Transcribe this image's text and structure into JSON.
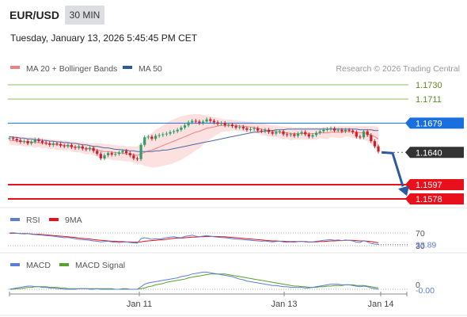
{
  "header": {
    "symbol": "EUR/USD",
    "timeframe": "30 MIN",
    "datetime": "Tuesday, January 13, 2026 5:45:45 PM CET"
  },
  "colors": {
    "ma20": "#f08080",
    "bollinger_fill": "#fde0e0",
    "ma50": "#4a6aa8",
    "price_up": "#2e9e6a",
    "price_down": "#c8202c",
    "support": "#e8101a",
    "resistance": "#8cc05c",
    "pivot": "#1a6fe0",
    "current": "#333333",
    "arrow": "#2b5aa0",
    "rsi": "#5b7fd6",
    "rsi_ma": "#e8101a",
    "macd": "#5b7fd6",
    "macd_signal": "#5aa02c"
  },
  "chart_data": [
    {
      "type": "line",
      "panel": "price",
      "legend": [
        {
          "label": "MA 20 + Bollinger Bands",
          "color": "#f08080"
        },
        {
          "label": "MA 50",
          "color": "#2b5aa0"
        }
      ],
      "credit": "Research © 2026 Trading Central",
      "x_ticks": [
        "Jan 11",
        "Jan 13",
        "Jan 14"
      ],
      "ylim": [
        1.157,
        1.174
      ],
      "levels": [
        {
          "value": 1.173,
          "label": "1.1730",
          "kind": "resistance"
        },
        {
          "value": 1.1711,
          "label": "1.1711",
          "kind": "resistance"
        },
        {
          "value": 1.1679,
          "label": "1.1679",
          "kind": "pivot"
        },
        {
          "value": 1.164,
          "label": "1.1640",
          "kind": "current"
        },
        {
          "value": 1.1597,
          "label": "1.1597",
          "kind": "support"
        },
        {
          "value": 1.1578,
          "label": "1.1578",
          "kind": "support"
        }
      ],
      "forecast_arrow": {
        "from": 1.164,
        "to": 1.1582
      },
      "price_series": [
        1.1659,
        1.1658,
        1.1656,
        1.1654,
        1.1655,
        1.1652,
        1.1654,
        1.1657,
        1.1655,
        1.1653,
        1.1652,
        1.165,
        1.1652,
        1.1651,
        1.1649,
        1.1648,
        1.165,
        1.1647,
        1.1646,
        1.1648,
        1.1645,
        1.1644,
        1.1646,
        1.1642,
        1.1638,
        1.1632,
        1.1636,
        1.1639,
        1.1637,
        1.1638,
        1.164,
        1.1642,
        1.1639,
        1.1636,
        1.1632,
        1.1631,
        1.165,
        1.166,
        1.1661,
        1.1658,
        1.1662,
        1.1663,
        1.1664,
        1.1665,
        1.1667,
        1.1668,
        1.167,
        1.1673,
        1.1676,
        1.168,
        1.1682,
        1.1681,
        1.1679,
        1.1681,
        1.1684,
        1.1682,
        1.168,
        1.1678,
        1.1679,
        1.1676,
        1.1677,
        1.1675,
        1.1673,
        1.1674,
        1.1672,
        1.167,
        1.1671,
        1.1672,
        1.1669,
        1.1668,
        1.167,
        1.1667,
        1.1665,
        1.1667,
        1.1668,
        1.1664,
        1.1663,
        1.1664,
        1.1662,
        1.1665,
        1.1667,
        1.1664,
        1.1661,
        1.1663,
        1.1666,
        1.1668,
        1.167,
        1.1671,
        1.1672,
        1.1669,
        1.167,
        1.1668,
        1.167,
        1.1669,
        1.1667,
        1.1661,
        1.166,
        1.1668,
        1.1663,
        1.1655,
        1.1648,
        1.1641
      ],
      "ma20_series": [
        1.1656,
        1.1656,
        1.1655,
        1.1655,
        1.1654,
        1.1654,
        1.1654,
        1.1653,
        1.1653,
        1.1652,
        1.1652,
        1.1651,
        1.1651,
        1.165,
        1.165,
        1.1649,
        1.1649,
        1.1648,
        1.1647,
        1.1647,
        1.1646,
        1.1645,
        1.1645,
        1.1644,
        1.1643,
        1.1642,
        1.1641,
        1.1641,
        1.164,
        1.164,
        1.1639,
        1.1639,
        1.1638,
        1.1638,
        1.1637,
        1.1636,
        1.1638,
        1.164,
        1.1642,
        1.1643,
        1.1645,
        1.1647,
        1.1649,
        1.1651,
        1.1653,
        1.1655,
        1.1657,
        1.1659,
        1.1661,
        1.1663,
        1.1665,
        1.1667,
        1.1668,
        1.167,
        1.1672,
        1.1673,
        1.1674,
        1.1675,
        1.1676,
        1.1676,
        1.1676,
        1.1676,
        1.1676,
        1.1675,
        1.1675,
        1.1674,
        1.1674,
        1.1673,
        1.1672,
        1.1671,
        1.167,
        1.1669,
        1.1668,
        1.1668,
        1.1667,
        1.1666,
        1.1666,
        1.1665,
        1.1665,
        1.1665,
        1.1665,
        1.1665,
        1.1665,
        1.1665,
        1.1665,
        1.1666,
        1.1666,
        1.1666,
        1.1667,
        1.1667,
        1.1667,
        1.1667,
        1.1668,
        1.1668,
        1.1667,
        1.1667,
        1.1666,
        1.1666,
        1.1665,
        1.1663,
        1.1661,
        1.1658
      ],
      "bb_upper": [
        1.1662,
        1.1662,
        1.1661,
        1.1661,
        1.166,
        1.166,
        1.166,
        1.166,
        1.1659,
        1.1659,
        1.1658,
        1.1658,
        1.1657,
        1.1657,
        1.1656,
        1.1656,
        1.1655,
        1.1655,
        1.1654,
        1.1654,
        1.1653,
        1.1653,
        1.1652,
        1.1652,
        1.1652,
        1.1652,
        1.1651,
        1.1651,
        1.165,
        1.165,
        1.1649,
        1.1649,
        1.1648,
        1.1648,
        1.1648,
        1.1648,
        1.1652,
        1.1658,
        1.1663,
        1.1666,
        1.167,
        1.1673,
        1.1676,
        1.1679,
        1.1682,
        1.1684,
        1.1686,
        1.1688,
        1.1689,
        1.169,
        1.1691,
        1.1691,
        1.1691,
        1.169,
        1.1689,
        1.1688,
        1.1687,
        1.1686,
        1.1685,
        1.1684,
        1.1684,
        1.1683,
        1.1683,
        1.1682,
        1.1682,
        1.1681,
        1.1681,
        1.168,
        1.1679,
        1.1679,
        1.1678,
        1.1677,
        1.1676,
        1.1676,
        1.1675,
        1.1675,
        1.1674,
        1.1674,
        1.1673,
        1.1673,
        1.1673,
        1.1673,
        1.1673,
        1.1673,
        1.1673,
        1.1673,
        1.1674,
        1.1674,
        1.1674,
        1.1674,
        1.1675,
        1.1675,
        1.1675,
        1.1675,
        1.1675,
        1.1675,
        1.1675,
        1.1675,
        1.1675,
        1.1675,
        1.1675,
        1.1674
      ],
      "bb_lower": [
        1.165,
        1.165,
        1.1649,
        1.1649,
        1.1648,
        1.1648,
        1.1648,
        1.1646,
        1.1647,
        1.1645,
        1.1646,
        1.1644,
        1.1645,
        1.1643,
        1.1644,
        1.1642,
        1.1643,
        1.1641,
        1.164,
        1.164,
        1.1639,
        1.1637,
        1.1638,
        1.1636,
        1.1634,
        1.1632,
        1.1631,
        1.1631,
        1.163,
        1.163,
        1.1629,
        1.1629,
        1.1628,
        1.1628,
        1.1626,
        1.1624,
        1.1624,
        1.1622,
        1.1621,
        1.162,
        1.162,
        1.1621,
        1.1622,
        1.1623,
        1.1624,
        1.1626,
        1.1628,
        1.163,
        1.1633,
        1.1636,
        1.1639,
        1.1643,
        1.1645,
        1.165,
        1.1655,
        1.1658,
        1.1661,
        1.1664,
        1.1667,
        1.1668,
        1.1668,
        1.1669,
        1.1669,
        1.1668,
        1.1668,
        1.1667,
        1.1667,
        1.1666,
        1.1665,
        1.1663,
        1.1662,
        1.1661,
        1.166,
        1.166,
        1.1659,
        1.1657,
        1.1658,
        1.1656,
        1.1657,
        1.1657,
        1.1657,
        1.1657,
        1.1657,
        1.1657,
        1.1657,
        1.1659,
        1.1658,
        1.1658,
        1.166,
        1.166,
        1.1659,
        1.1659,
        1.1661,
        1.1661,
        1.1659,
        1.1659,
        1.1657,
        1.1657,
        1.1655,
        1.1651,
        1.1647,
        1.1642
      ],
      "ma50_series": [
        1.1661,
        1.166,
        1.166,
        1.1659,
        1.1659,
        1.1658,
        1.1658,
        1.1657,
        1.1657,
        1.1656,
        1.1656,
        1.1655,
        1.1655,
        1.1654,
        1.1654,
        1.1653,
        1.1653,
        1.1652,
        1.1652,
        1.1651,
        1.165,
        1.165,
        1.1649,
        1.1648,
        1.1648,
        1.1647,
        1.1646,
        1.1646,
        1.1645,
        1.1644,
        1.1644,
        1.1643,
        1.1643,
        1.1642,
        1.1642,
        1.1641,
        1.1641,
        1.1641,
        1.1641,
        1.1641,
        1.1642,
        1.1642,
        1.1643,
        1.1643,
        1.1644,
        1.1645,
        1.1646,
        1.1647,
        1.1648,
        1.1649,
        1.165,
        1.1651,
        1.1652,
        1.1653,
        1.1654,
        1.1655,
        1.1656,
        1.1657,
        1.1658,
        1.1659,
        1.166,
        1.1661,
        1.1662,
        1.1663,
        1.1664,
        1.1665,
        1.1666,
        1.1667,
        1.1667,
        1.1668,
        1.1668,
        1.1669,
        1.1669,
        1.167,
        1.167,
        1.167,
        1.1671,
        1.1671,
        1.1671,
        1.1671,
        1.1671,
        1.1671,
        1.1671,
        1.1671,
        1.1671,
        1.1671,
        1.1671,
        1.1671,
        1.1671,
        1.1671,
        1.1671,
        1.1671,
        1.1671,
        1.1671,
        1.1671,
        1.1671,
        1.167,
        1.167,
        1.167,
        1.167,
        1.1669,
        1.1669
      ]
    },
    {
      "type": "line",
      "panel": "rsi",
      "legend": [
        {
          "label": "RSI",
          "color": "#5b7fd6"
        },
        {
          "label": "9MA",
          "color": "#e8101a"
        }
      ],
      "levels": [
        {
          "value": 70,
          "label": "70"
        },
        {
          "value": 30,
          "label": "30"
        }
      ],
      "current_value": {
        "value": 33.89,
        "label": "33.89"
      },
      "ylim": [
        20,
        80
      ],
      "rsi_series": [
        70,
        71,
        69,
        68,
        67,
        68,
        66,
        65,
        64,
        63,
        62,
        61,
        60,
        58,
        57,
        55,
        56,
        54,
        52,
        50,
        49,
        48,
        47,
        45,
        44,
        42,
        43,
        44,
        42,
        41,
        40,
        41,
        42,
        40,
        39,
        38,
        52,
        55,
        53,
        50,
        52,
        51,
        53,
        55,
        57,
        58,
        56,
        55,
        59,
        61,
        63,
        60,
        58,
        60,
        62,
        60,
        58,
        57,
        56,
        55,
        54,
        52,
        51,
        50,
        49,
        48,
        47,
        46,
        45,
        44,
        45,
        43,
        42,
        43,
        44,
        42,
        41,
        42,
        41,
        43,
        44,
        42,
        41,
        42,
        44,
        45,
        47,
        48,
        49,
        47,
        48,
        46,
        48,
        47,
        45,
        41,
        40,
        46,
        42,
        37,
        35,
        34
      ],
      "ma_series": [
        69,
        69,
        69,
        68,
        68,
        68,
        67,
        66,
        66,
        65,
        64,
        63,
        62,
        61,
        60,
        59,
        58,
        57,
        56,
        54,
        53,
        52,
        51,
        49,
        48,
        47,
        46,
        45,
        44,
        44,
        43,
        43,
        42,
        42,
        41,
        41,
        42,
        44,
        45,
        46,
        47,
        48,
        49,
        50,
        52,
        53,
        54,
        54,
        55,
        56,
        57,
        57,
        58,
        58,
        59,
        59,
        59,
        59,
        58,
        58,
        57,
        56,
        55,
        54,
        53,
        52,
        51,
        50,
        49,
        48,
        47,
        46,
        45,
        45,
        44,
        44,
        43,
        43,
        43,
        43,
        43,
        43,
        42,
        42,
        42,
        43,
        43,
        44,
        45,
        45,
        46,
        46,
        47,
        47,
        47,
        46,
        45,
        45,
        44,
        43,
        41,
        39
      ]
    },
    {
      "type": "line",
      "panel": "macd",
      "legend": [
        {
          "label": "MACD",
          "color": "#5b7fd6"
        },
        {
          "label": "MACD Signal",
          "color": "#5aa02c"
        }
      ],
      "levels": [
        {
          "value": 0,
          "label": "0"
        }
      ],
      "current_value": {
        "value": -0.0,
        "label": "-0.00"
      },
      "ylim": [
        -0.001,
        0.0035
      ],
      "macd_series": [
        0.0,
        0.0001,
        0.0002,
        0.0003,
        0.0004,
        0.0005,
        0.0005,
        0.0004,
        0.0004,
        0.0003,
        0.0003,
        0.0002,
        0.0002,
        0.0001,
        0.0001,
        0.0,
        0.0,
        0.0,
        0.0,
        0.0001,
        0.0001,
        0.0001,
        0.0,
        0.0,
        0.0001,
        0.0,
        0.0,
        0.0,
        0.0,
        0.0,
        0.0,
        0.0001,
        0.0001,
        0.0,
        0.0,
        0.0,
        0.0004,
        0.0008,
        0.001,
        0.0011,
        0.0012,
        0.0013,
        0.0014,
        0.0015,
        0.0016,
        0.0017,
        0.0018,
        0.002,
        0.0021,
        0.0022,
        0.0024,
        0.0025,
        0.0026,
        0.0027,
        0.0027,
        0.0026,
        0.0025,
        0.0024,
        0.0023,
        0.0022,
        0.0021,
        0.002,
        0.0018,
        0.0016,
        0.0015,
        0.0013,
        0.0012,
        0.0011,
        0.001,
        0.0009,
        0.0008,
        0.0007,
        0.0006,
        0.0006,
        0.0005,
        0.0004,
        0.0004,
        0.0003,
        0.0003,
        0.0003,
        0.0003,
        0.0002,
        0.0002,
        0.0003,
        0.0004,
        0.0005,
        0.0006,
        0.0007,
        0.0008,
        0.0008,
        0.0008,
        0.0007,
        0.0007,
        0.0007,
        0.0006,
        0.0005,
        0.0004,
        0.0005,
        0.0004,
        0.0002,
        0.0001,
        0.0
      ],
      "signal_series": [
        0.0,
        0.0,
        0.0001,
        0.0001,
        0.0002,
        0.0003,
        0.0003,
        0.0004,
        0.0004,
        0.0004,
        0.0004,
        0.0003,
        0.0003,
        0.0003,
        0.0002,
        0.0002,
        0.0001,
        0.0001,
        0.0001,
        0.0001,
        0.0001,
        0.0001,
        0.0001,
        0.0001,
        0.0001,
        0.0001,
        0.0001,
        0.0001,
        0.0001,
        0.0,
        0.0,
        0.0,
        0.0,
        0.0,
        0.0,
        0.0,
        0.0001,
        0.0002,
        0.0004,
        0.0005,
        0.0007,
        0.0008,
        0.0009,
        0.0011,
        0.0012,
        0.0013,
        0.0014,
        0.0015,
        0.0016,
        0.0018,
        0.0019,
        0.002,
        0.0021,
        0.0022,
        0.0023,
        0.0024,
        0.0024,
        0.0024,
        0.0024,
        0.0024,
        0.0023,
        0.0022,
        0.0021,
        0.002,
        0.0019,
        0.0018,
        0.0017,
        0.0016,
        0.0015,
        0.0014,
        0.0013,
        0.0012,
        0.0011,
        0.001,
        0.0009,
        0.0008,
        0.0007,
        0.0006,
        0.0005,
        0.0005,
        0.0004,
        0.0004,
        0.0003,
        0.0003,
        0.0003,
        0.0004,
        0.0004,
        0.0005,
        0.0005,
        0.0006,
        0.0006,
        0.0006,
        0.0007,
        0.0007,
        0.0007,
        0.0006,
        0.0006,
        0.0006,
        0.0005,
        0.0004,
        0.0003,
        0.0002
      ]
    }
  ]
}
